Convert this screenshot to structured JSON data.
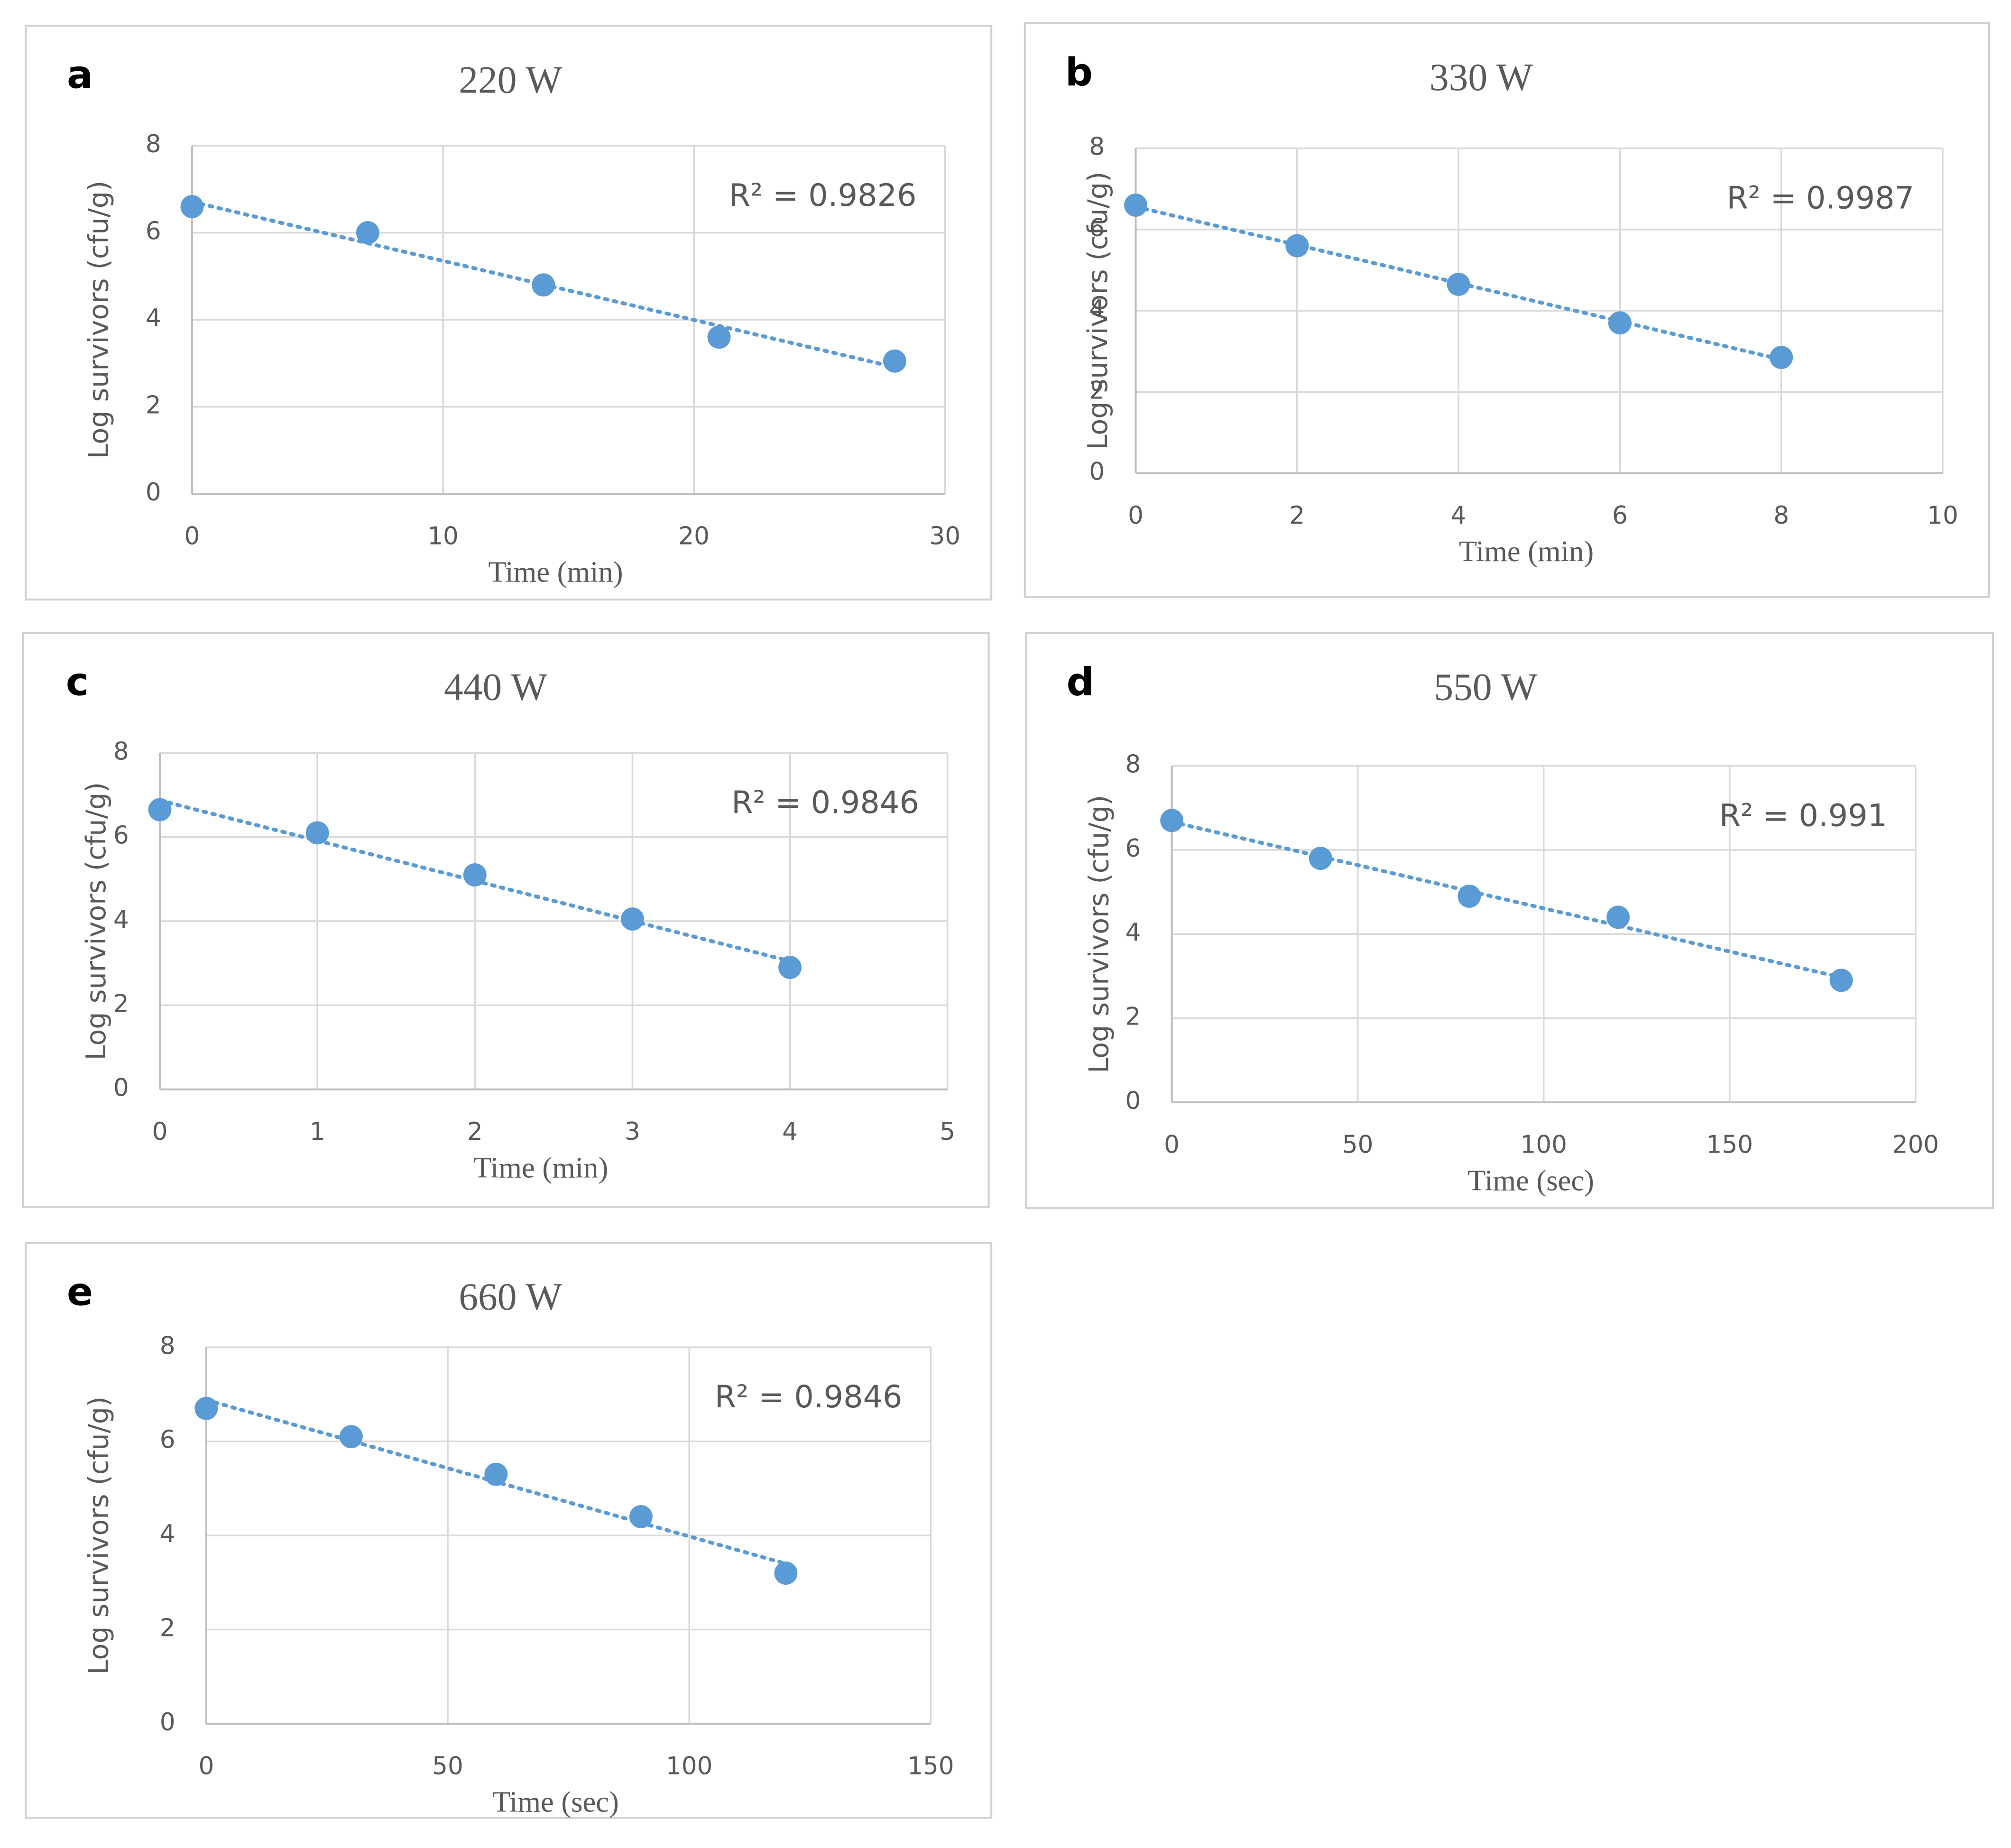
{
  "chart_data": [
    {
      "type": "scatter",
      "panel_label": "a",
      "title": "220 W",
      "annotation": "R² = 0.9826",
      "x_label": "Time (min)",
      "y_label": "Log survivors (cfu/g)",
      "x": [
        0,
        7,
        14,
        21,
        28
      ],
      "values": [
        6.6,
        6.0,
        4.8,
        3.6,
        3.05
      ],
      "color": "#5b9bd5",
      "trendline": "linear",
      "grid": true,
      "xlim": [
        0,
        30
      ],
      "xticks": [
        0,
        10,
        20,
        30
      ],
      "ylim": [
        0,
        8
      ],
      "yticks": [
        0,
        2,
        4,
        6,
        8
      ]
    },
    {
      "type": "scatter",
      "panel_label": "b",
      "title": "330 W",
      "annotation": "R² = 0.9987",
      "x_label": "Time (min)",
      "y_label": "Log survivors (cfu/g)",
      "x": [
        0,
        2,
        4,
        6,
        8
      ],
      "values": [
        6.6,
        5.6,
        4.65,
        3.7,
        2.85
      ],
      "color": "#5b9bd5",
      "trendline": "linear",
      "grid": true,
      "xlim": [
        0,
        10
      ],
      "xticks": [
        0,
        2,
        4,
        6,
        8,
        10
      ],
      "ylim": [
        0,
        8
      ],
      "yticks": [
        0,
        2,
        4,
        6,
        8
      ]
    },
    {
      "type": "scatter",
      "panel_label": "c",
      "title": "440 W",
      "annotation": "R² = 0.9846",
      "x_label": "Time (min)",
      "y_label": "Log survivors (cfu/g)",
      "x": [
        0,
        1,
        2,
        3,
        4
      ],
      "values": [
        6.65,
        6.1,
        5.1,
        4.05,
        2.9
      ],
      "color": "#5b9bd5",
      "trendline": "linear",
      "grid": true,
      "xlim": [
        0,
        5
      ],
      "xticks": [
        0,
        1,
        2,
        3,
        4,
        5
      ],
      "ylim": [
        0,
        8
      ],
      "yticks": [
        0,
        2,
        4,
        6,
        8
      ]
    },
    {
      "type": "scatter",
      "panel_label": "d",
      "title": "550 W",
      "annotation": "R² = 0.991",
      "x_label": "Time (sec)",
      "y_label": "Log survivors (cfu/g)",
      "x": [
        0,
        40,
        80,
        120,
        180
      ],
      "values": [
        6.7,
        5.8,
        4.9,
        4.4,
        2.9
      ],
      "color": "#5b9bd5",
      "trendline": "linear",
      "grid": true,
      "xlim": [
        0,
        200
      ],
      "xticks": [
        0,
        50,
        100,
        150,
        200
      ],
      "ylim": [
        0,
        8
      ],
      "yticks": [
        0,
        2,
        4,
        6,
        8
      ]
    },
    {
      "type": "scatter",
      "panel_label": "e",
      "title": "660 W",
      "annotation": "R² = 0.9846",
      "x_label": "Time (sec)",
      "y_label": "Log survivors (cfu/g)",
      "x": [
        0,
        30,
        60,
        90,
        120
      ],
      "values": [
        6.7,
        6.1,
        5.3,
        4.4,
        3.2
      ],
      "color": "#5b9bd5",
      "trendline": "linear",
      "grid": true,
      "xlim": [
        0,
        150
      ],
      "xticks": [
        0,
        50,
        100,
        150
      ],
      "ylim": [
        0,
        8
      ],
      "yticks": [
        0,
        2,
        4,
        6,
        8
      ]
    }
  ]
}
